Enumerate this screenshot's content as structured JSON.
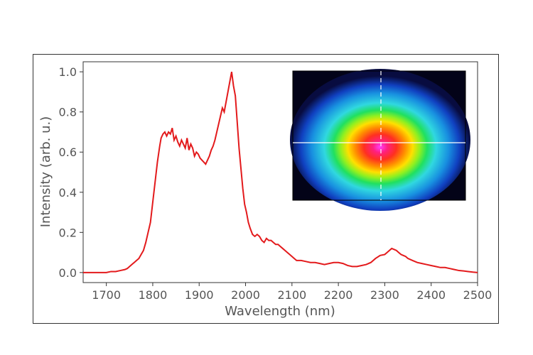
{
  "chart_data": {
    "type": "line",
    "xlabel": "Wavelength (nm)",
    "ylabel": "Intensity (arb. u.)",
    "xlim": [
      1650,
      2500
    ],
    "ylim": [
      -0.05,
      1.05
    ],
    "xticks": [
      "1700",
      "1800",
      "1900",
      "2000",
      "2100",
      "2200",
      "2300",
      "2400",
      "2500"
    ],
    "yticks": [
      "0.0",
      "0.2",
      "0.4",
      "0.6",
      "0.8",
      "1.0"
    ],
    "grid": false,
    "series": [
      {
        "color": "#e31a1c",
        "x": [
          1650,
          1660,
          1670,
          1680,
          1690,
          1700,
          1710,
          1720,
          1730,
          1740,
          1745,
          1750,
          1755,
          1760,
          1765,
          1770,
          1775,
          1780,
          1785,
          1790,
          1795,
          1800,
          1805,
          1810,
          1815,
          1818,
          1822,
          1826,
          1830,
          1834,
          1838,
          1842,
          1846,
          1850,
          1854,
          1858,
          1862,
          1866,
          1870,
          1874,
          1878,
          1882,
          1886,
          1890,
          1894,
          1898,
          1902,
          1906,
          1910,
          1914,
          1918,
          1922,
          1926,
          1930,
          1934,
          1938,
          1942,
          1946,
          1950,
          1954,
          1958,
          1962,
          1966,
          1970,
          1974,
          1978,
          1982,
          1986,
          1990,
          1994,
          1998,
          2002,
          2006,
          2010,
          2015,
          2020,
          2025,
          2030,
          2035,
          2040,
          2045,
          2050,
          2055,
          2060,
          2065,
          2070,
          2075,
          2080,
          2085,
          2090,
          2095,
          2100,
          2105,
          2110,
          2120,
          2130,
          2140,
          2150,
          2160,
          2170,
          2180,
          2190,
          2200,
          2210,
          2220,
          2230,
          2240,
          2250,
          2260,
          2270,
          2280,
          2290,
          2300,
          2305,
          2310,
          2315,
          2320,
          2325,
          2330,
          2335,
          2340,
          2345,
          2350,
          2360,
          2370,
          2380,
          2390,
          2400,
          2410,
          2420,
          2430,
          2440,
          2450,
          2460,
          2470,
          2480,
          2490,
          2500
        ],
        "y": [
          0.0,
          0.0,
          0.0,
          0.0,
          0.0,
          0.0,
          0.005,
          0.005,
          0.01,
          0.015,
          0.02,
          0.03,
          0.04,
          0.05,
          0.06,
          0.07,
          0.09,
          0.11,
          0.15,
          0.2,
          0.25,
          0.35,
          0.45,
          0.55,
          0.63,
          0.67,
          0.69,
          0.7,
          0.68,
          0.7,
          0.69,
          0.72,
          0.66,
          0.68,
          0.65,
          0.63,
          0.66,
          0.64,
          0.62,
          0.67,
          0.61,
          0.64,
          0.62,
          0.58,
          0.6,
          0.59,
          0.57,
          0.56,
          0.55,
          0.54,
          0.56,
          0.58,
          0.61,
          0.63,
          0.66,
          0.7,
          0.74,
          0.78,
          0.82,
          0.8,
          0.85,
          0.9,
          0.95,
          1.0,
          0.93,
          0.88,
          0.75,
          0.62,
          0.52,
          0.42,
          0.34,
          0.3,
          0.25,
          0.22,
          0.19,
          0.18,
          0.19,
          0.18,
          0.16,
          0.15,
          0.17,
          0.16,
          0.16,
          0.15,
          0.14,
          0.14,
          0.13,
          0.12,
          0.11,
          0.1,
          0.09,
          0.08,
          0.07,
          0.06,
          0.06,
          0.055,
          0.05,
          0.05,
          0.045,
          0.04,
          0.045,
          0.05,
          0.05,
          0.045,
          0.035,
          0.03,
          0.03,
          0.035,
          0.04,
          0.05,
          0.07,
          0.085,
          0.09,
          0.1,
          0.11,
          0.12,
          0.115,
          0.11,
          0.1,
          0.09,
          0.085,
          0.08,
          0.07,
          0.06,
          0.05,
          0.045,
          0.04,
          0.035,
          0.03,
          0.025,
          0.025,
          0.02,
          0.015,
          0.01,
          0.008,
          0.005,
          0.002,
          0.0
        ]
      }
    ]
  }
}
